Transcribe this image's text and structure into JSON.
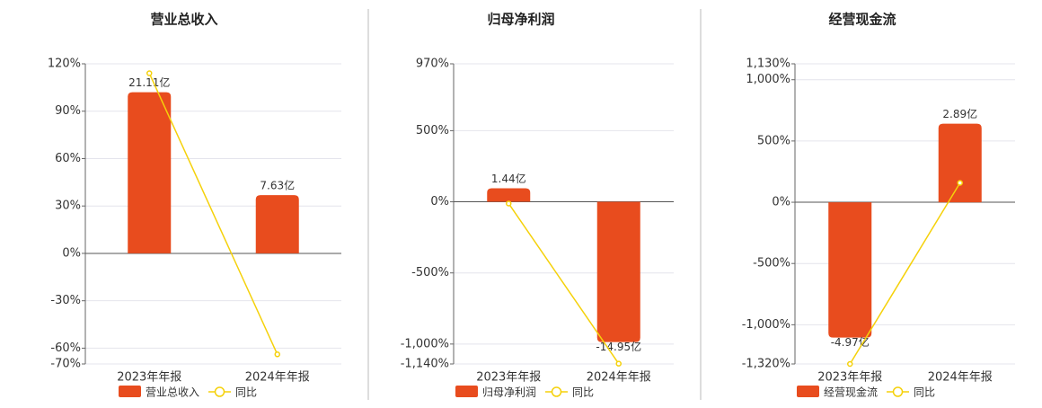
{
  "chart_data": [
    {
      "type": "bar",
      "title": "营业总收入",
      "categories": [
        "2023年年报",
        "2024年年报"
      ],
      "series": [
        {
          "name": "营业总收入",
          "color": "#e84c1e",
          "values": [
            21.11,
            7.63
          ],
          "value_labels": [
            "21.11亿",
            "7.63亿"
          ],
          "axis": "y2"
        },
        {
          "name": "同比",
          "color": "#f5d10a",
          "type": "line",
          "values": [
            114,
            -63.9
          ]
        }
      ],
      "ylim": [
        -70,
        120
      ],
      "y2lim": [
        -14.49,
        24.83
      ],
      "yticks": [
        {
          "value": 120,
          "label": "120%"
        },
        {
          "value": 90,
          "label": "90%"
        },
        {
          "value": 60,
          "label": "60%"
        },
        {
          "value": 30,
          "label": "30%"
        },
        {
          "value": 0,
          "label": "0%"
        },
        {
          "value": -30,
          "label": "-30%"
        },
        {
          "value": -60,
          "label": "-60%"
        },
        {
          "value": -70,
          "label": "-70%"
        }
      ],
      "grid": true
    },
    {
      "type": "bar",
      "title": "归母净利润",
      "categories": [
        "2023年年报",
        "2024年年报"
      ],
      "series": [
        {
          "name": "归母净利润",
          "color": "#e84c1e",
          "values": [
            1.44,
            -14.95
          ],
          "value_labels": [
            "1.44亿",
            "-14.95亿"
          ],
          "axis": "y2"
        },
        {
          "name": "同比",
          "color": "#f5d10a",
          "type": "line",
          "values": [
            -12,
            -1138
          ]
        }
      ],
      "ylim": [
        -1140,
        970
      ],
      "y2lim": [
        -17.28,
        14.7
      ],
      "yticks": [
        {
          "value": 970,
          "label": "970%"
        },
        {
          "value": 500,
          "label": "500%"
        },
        {
          "value": 0,
          "label": "0%"
        },
        {
          "value": -500,
          "label": "-500%"
        },
        {
          "value": -1000,
          "label": "-1,000%"
        },
        {
          "value": -1140,
          "label": "-1,140%"
        }
      ],
      "grid": true
    },
    {
      "type": "bar",
      "title": "经营现金流",
      "categories": [
        "2023年年报",
        "2024年年报"
      ],
      "series": [
        {
          "name": "经营现金流",
          "color": "#e84c1e",
          "values": [
            -4.97,
            2.89
          ],
          "value_labels": [
            "-4.97亿",
            "2.89亿"
          ],
          "axis": "y2"
        },
        {
          "name": "同比",
          "color": "#f5d10a",
          "type": "line",
          "values": [
            -1320,
            158
          ]
        }
      ],
      "ylim": [
        -1320,
        1130
      ],
      "y2lim": [
        -5.94,
        5.09
      ],
      "yticks": [
        {
          "value": 1130,
          "label": "1,130%"
        },
        {
          "value": 1000,
          "label": "1,000%"
        },
        {
          "value": 500,
          "label": "500%"
        },
        {
          "value": 0,
          "label": "0%"
        },
        {
          "value": -500,
          "label": "-500%"
        },
        {
          "value": -1000,
          "label": "-1,000%"
        },
        {
          "value": -1320,
          "label": "-1,320%"
        }
      ],
      "grid": true
    }
  ]
}
